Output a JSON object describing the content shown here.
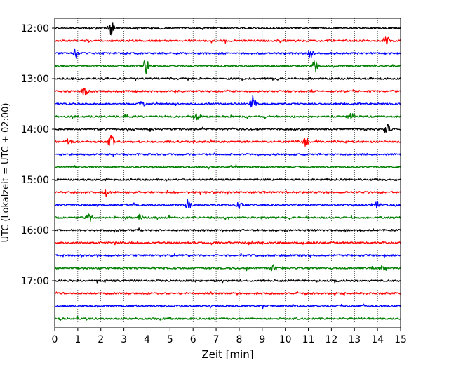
{
  "chart_data": {
    "type": "line",
    "title": "",
    "xlabel": "Zeit  [min]",
    "ylabel": "UTC (Lokalzeit = UTC + 02:00)",
    "xlim": [
      0,
      15
    ],
    "x_ticks": [
      "0",
      "1",
      "2",
      "3",
      "4",
      "5",
      "6",
      "7",
      "8",
      "9",
      "10",
      "11",
      "12",
      "13",
      "14",
      "15"
    ],
    "y_ticks": [
      "12:00",
      "13:00",
      "14:00",
      "15:00",
      "16:00",
      "17:00"
    ],
    "grid": "vertical dotted",
    "legend": "none",
    "trace_colors": [
      "#000000",
      "#ff0000",
      "#0000ff",
      "#008000"
    ],
    "series": [
      {
        "start": "12:00",
        "color": "#000000",
        "events": [
          {
            "x": 2.45,
            "a": 9
          }
        ]
      },
      {
        "start": "12:15",
        "color": "#ff0000",
        "events": [
          {
            "x": 14.4,
            "a": 6
          }
        ]
      },
      {
        "start": "12:30",
        "color": "#0000ff",
        "events": [
          {
            "x": 0.9,
            "a": 8
          },
          {
            "x": 11.1,
            "a": 5
          }
        ]
      },
      {
        "start": "12:45",
        "color": "#008000",
        "events": [
          {
            "x": 3.95,
            "a": 10
          },
          {
            "x": 11.3,
            "a": 10
          }
        ]
      },
      {
        "start": "13:00",
        "color": "#000000",
        "events": []
      },
      {
        "start": "13:15",
        "color": "#ff0000",
        "events": [
          {
            "x": 1.3,
            "a": 6
          }
        ]
      },
      {
        "start": "13:30",
        "color": "#0000ff",
        "events": [
          {
            "x": 3.8,
            "a": 5
          },
          {
            "x": 8.6,
            "a": 12
          }
        ]
      },
      {
        "start": "13:45",
        "color": "#008000",
        "events": [
          {
            "x": 6.2,
            "a": 4
          },
          {
            "x": 12.9,
            "a": 5
          }
        ]
      },
      {
        "start": "14:00",
        "color": "#000000",
        "events": [
          {
            "x": 14.4,
            "a": 8
          }
        ]
      },
      {
        "start": "14:15",
        "color": "#ff0000",
        "events": [
          {
            "x": 0.6,
            "a": 4
          },
          {
            "x": 2.45,
            "a": 9
          },
          {
            "x": 10.9,
            "a": 6
          }
        ]
      },
      {
        "start": "14:30",
        "color": "#0000ff",
        "events": []
      },
      {
        "start": "14:45",
        "color": "#008000",
        "events": []
      },
      {
        "start": "15:00",
        "color": "#000000",
        "events": []
      },
      {
        "start": "15:15",
        "color": "#ff0000",
        "events": [
          {
            "x": 2.2,
            "a": 5
          }
        ]
      },
      {
        "start": "15:30",
        "color": "#0000ff",
        "events": [
          {
            "x": 5.8,
            "a": 8
          },
          {
            "x": 8.0,
            "a": 5
          },
          {
            "x": 14.0,
            "a": 4
          }
        ]
      },
      {
        "start": "15:45",
        "color": "#008000",
        "events": [
          {
            "x": 1.5,
            "a": 5
          },
          {
            "x": 3.7,
            "a": 5
          }
        ]
      },
      {
        "start": "16:00",
        "color": "#000000",
        "events": []
      },
      {
        "start": "16:15",
        "color": "#ff0000",
        "events": []
      },
      {
        "start": "16:30",
        "color": "#0000ff",
        "events": []
      },
      {
        "start": "16:45",
        "color": "#008000",
        "events": [
          {
            "x": 9.5,
            "a": 5
          },
          {
            "x": 14.2,
            "a": 3
          }
        ]
      },
      {
        "start": "17:00",
        "color": "#000000",
        "events": []
      },
      {
        "start": "17:15",
        "color": "#ff0000",
        "events": []
      },
      {
        "start": "17:30",
        "color": "#0000ff",
        "events": []
      },
      {
        "start": "17:45",
        "color": "#008000",
        "events": []
      }
    ]
  }
}
